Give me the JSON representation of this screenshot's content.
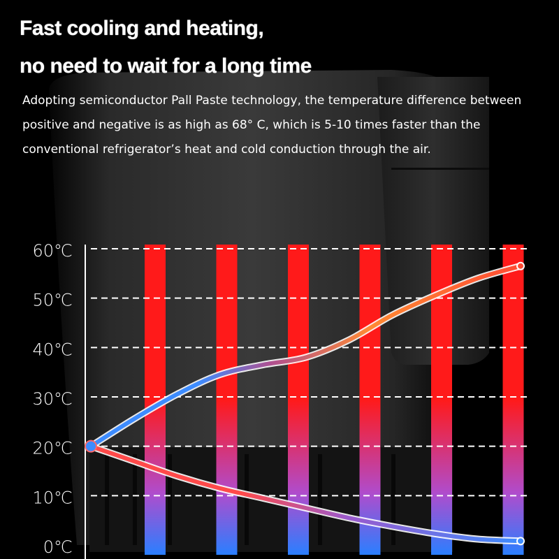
{
  "headline": {
    "line1": "Fast cooling and heating,",
    "line2": "no need to wait for a long time"
  },
  "description": "Adopting semiconductor Pall Paste technology, the temperature difference between positive and negative is as high as 68° C, which is 5-10 times faster than the conventional refrigerator’s heat and cold conduction through the air.",
  "colors": {
    "background": "#0a0a0a",
    "hot": "#ff1a1a",
    "cold": "#2a7fff",
    "gridline": "#ffffff"
  },
  "chart_data": {
    "type": "line",
    "title": "",
    "xlabel": "",
    "ylabel": "",
    "y_ticks": [
      "0℃",
      "10℃",
      "20℃",
      "30℃",
      "40℃",
      "50℃",
      "60℃"
    ],
    "y_tick_values": [
      0,
      10,
      20,
      30,
      40,
      50,
      60
    ],
    "ylim": [
      0,
      60
    ],
    "x": [
      0,
      1,
      2,
      3,
      4,
      5,
      6,
      7,
      8,
      9,
      10
    ],
    "series": [
      {
        "values": [
          20,
          25.5,
          30.5,
          34.5,
          36.5,
          38,
          41.5,
          46.5,
          50.5,
          54,
          56.5
        ]
      },
      {
        "values": [
          20,
          17,
          14,
          11.5,
          9.5,
          7.5,
          5.5,
          3.8,
          2.3,
          1.2,
          0.8
        ]
      }
    ],
    "vertical_bars": 6,
    "grid": "dashed-horizontal",
    "legend": "none"
  }
}
